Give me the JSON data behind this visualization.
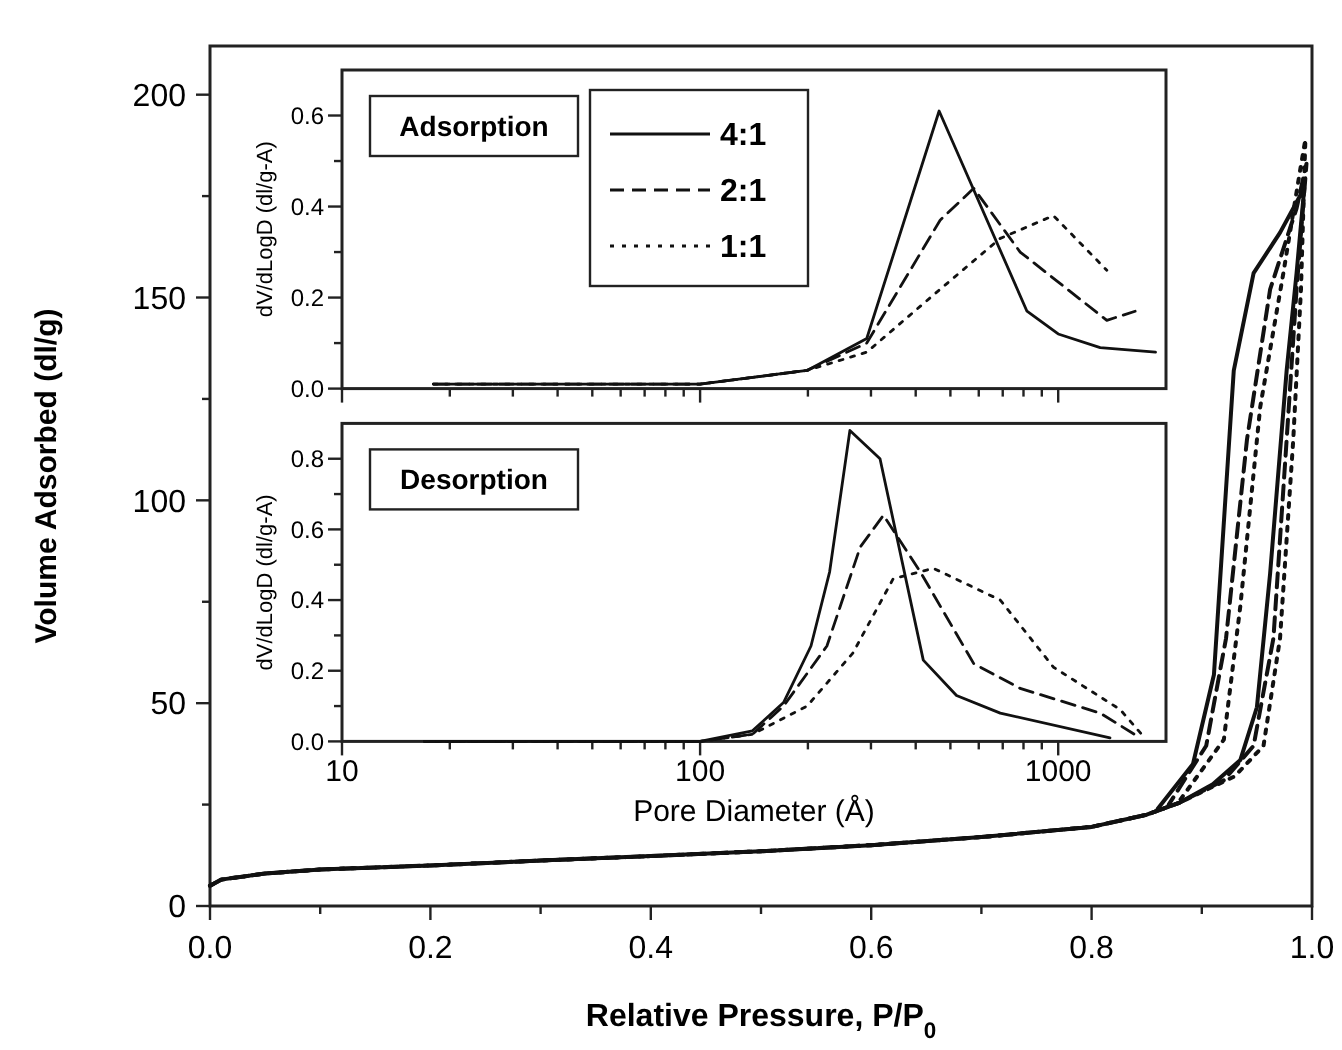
{
  "chart_data": [
    {
      "type": "line",
      "xlabel": "Relative Pressure, P/P$_{0}$",
      "ylabel": "Volume Adsorbed (dl/g)",
      "xlim": [
        0,
        1
      ],
      "ylim": [
        0,
        212
      ],
      "xticks": [
        {
          "value": 0,
          "label": "0.0"
        },
        {
          "value": 0.1,
          "label": null
        },
        {
          "value": 0.2,
          "label": "0.2"
        },
        {
          "value": 0.3,
          "label": null
        },
        {
          "value": 0.4,
          "label": "0.4"
        },
        {
          "value": 0.5,
          "label": null
        },
        {
          "value": 0.6,
          "label": "0.6"
        },
        {
          "value": 0.7,
          "label": null
        },
        {
          "value": 0.8,
          "label": "0.8"
        },
        {
          "value": 0.9,
          "label": null
        },
        {
          "value": 1,
          "label": "1.0"
        }
      ],
      "yticks": [
        0,
        {
          "value": 25,
          "label": null
        },
        50,
        {
          "value": 75,
          "label": null
        },
        100,
        {
          "value": 125,
          "label": null
        },
        150,
        {
          "value": 175,
          "label": null
        },
        200
      ],
      "series": [
        {
          "color": "#111111",
          "line_style": "solid",
          "x": [
            0,
            0.01,
            0.05,
            0.1,
            0.2,
            0.3,
            0.4,
            0.5,
            0.6,
            0.7,
            0.8,
            0.85,
            0.88,
            0.91,
            0.935,
            0.95,
            0.962,
            0.977,
            0.986,
            0.993,
            0.971,
            0.947,
            0.929,
            0.911,
            0.892,
            0.86
          ],
          "values": [
            5,
            6.5,
            8,
            9,
            10,
            11.2,
            12.3,
            13.5,
            15,
            17,
            19.5,
            22.5,
            25.5,
            30,
            36,
            49,
            82,
            132,
            156,
            177,
            166,
            156,
            132,
            57,
            35,
            24
          ]
        },
        {
          "color": "#111111",
          "line_style": "dashed",
          "x": [
            0,
            0.01,
            0.05,
            0.1,
            0.2,
            0.3,
            0.4,
            0.5,
            0.6,
            0.7,
            0.8,
            0.85,
            0.88,
            0.92,
            0.947,
            0.965,
            0.977,
            0.986,
            0.995,
            0.986,
            0.962,
            0.941,
            0.922,
            0.904,
            0.87
          ],
          "values": [
            5,
            6.5,
            8,
            9,
            10,
            11.2,
            12.3,
            13.5,
            15,
            17,
            19.5,
            22.5,
            25.5,
            31,
            39.5,
            66,
            115,
            152,
            183,
            172,
            152,
            115,
            66,
            39.5,
            25
          ]
        },
        {
          "color": "#111111",
          "line_style": "dotted",
          "x": [
            0,
            0.01,
            0.05,
            0.1,
            0.2,
            0.3,
            0.4,
            0.5,
            0.6,
            0.7,
            0.8,
            0.85,
            0.88,
            0.93,
            0.956,
            0.971,
            0.983,
            0.99,
            0.994,
            0.989,
            0.974,
            0.953,
            0.935,
            0.92,
            0.88
          ],
          "values": [
            5,
            6.5,
            8,
            9,
            10,
            11.2,
            12.3,
            13.5,
            15,
            17,
            19.5,
            22.5,
            25.5,
            32,
            39.5,
            66,
            115,
            152,
            189,
            181,
            156,
            123,
            74,
            41,
            26
          ]
        }
      ]
    },
    {
      "type": "line",
      "title": "Adsorption",
      "ylabel": "dV/dLogD (dl/g-A)",
      "log": "x",
      "xlim": [
        10,
        2000
      ],
      "ylim": [
        0,
        0.7
      ],
      "tick_labels": "y",
      "legend": "top left",
      "xticks": [
        10,
        {
          "value": 20,
          "label": null
        },
        {
          "value": 30,
          "label": null
        },
        {
          "value": 40,
          "label": null
        },
        {
          "value": 50,
          "label": null
        },
        {
          "value": 60,
          "label": null
        },
        {
          "value": 70,
          "label": null
        },
        {
          "value": 80,
          "label": null
        },
        {
          "value": 90,
          "label": null
        },
        100,
        {
          "value": 200,
          "label": null
        },
        {
          "value": 300,
          "label": null
        },
        {
          "value": 400,
          "label": null
        },
        {
          "value": 500,
          "label": null
        },
        {
          "value": 600,
          "label": null
        },
        {
          "value": 700,
          "label": null
        },
        {
          "value": 800,
          "label": null
        },
        {
          "value": 900,
          "label": null
        },
        1000
      ],
      "yticks": [
        {
          "value": 0,
          "label": "0.0"
        },
        {
          "value": 0.1,
          "label": null
        },
        {
          "value": 0.2,
          "label": "0.2"
        },
        {
          "value": 0.3,
          "label": null
        },
        {
          "value": 0.4,
          "label": "0.4"
        },
        {
          "value": 0.5,
          "label": null
        },
        {
          "value": 0.6,
          "label": "0.6"
        }
      ],
      "series": [
        {
          "name": "4:1",
          "color": "#111111",
          "line_style": "solid",
          "x": [
            18,
            100,
            199,
            292,
            465,
            818,
            1000,
            1310,
            1870
          ],
          "values": [
            0.01,
            0.01,
            0.04,
            0.11,
            0.61,
            0.17,
            0.12,
            0.09,
            0.08
          ]
        },
        {
          "name": "2:1",
          "color": "#111111",
          "line_style": "dashed",
          "x": [
            18,
            100,
            199,
            292,
            468,
            581,
            783,
            1367,
            1640
          ],
          "values": [
            0.01,
            0.01,
            0.04,
            0.1,
            0.37,
            0.44,
            0.3,
            0.15,
            0.17
          ]
        },
        {
          "name": "1:1",
          "color": "#111111",
          "line_style": "dotted",
          "x": [
            18,
            100,
            199,
            292,
            455,
            689,
            970,
            1367
          ],
          "values": [
            0.01,
            0.01,
            0.04,
            0.08,
            0.21,
            0.33,
            0.38,
            0.26
          ]
        }
      ]
    },
    {
      "type": "line",
      "title": "Desorption",
      "xlabel": "Pore Diameter (Å)",
      "ylabel": "dV/dLogD (dl/g-A)",
      "log": "x",
      "xlim": [
        10,
        2000
      ],
      "ylim": [
        0,
        0.9
      ],
      "xticks": [
        10,
        {
          "value": 20,
          "label": null
        },
        {
          "value": 30,
          "label": null
        },
        {
          "value": 40,
          "label": null
        },
        {
          "value": 50,
          "label": null
        },
        {
          "value": 60,
          "label": null
        },
        {
          "value": 70,
          "label": null
        },
        {
          "value": 80,
          "label": null
        },
        {
          "value": 90,
          "label": null
        },
        100,
        {
          "value": 200,
          "label": null
        },
        {
          "value": 300,
          "label": null
        },
        {
          "value": 400,
          "label": null
        },
        {
          "value": 500,
          "label": null
        },
        {
          "value": 600,
          "label": null
        },
        {
          "value": 700,
          "label": null
        },
        {
          "value": 800,
          "label": null
        },
        {
          "value": 900,
          "label": null
        },
        1000
      ],
      "yticks": [
        {
          "value": 0,
          "label": "0.0"
        },
        {
          "value": 0.1,
          "label": null
        },
        {
          "value": 0.2,
          "label": "0.2"
        },
        {
          "value": 0.3,
          "label": null
        },
        {
          "value": 0.4,
          "label": "0.4"
        },
        {
          "value": 0.5,
          "label": null
        },
        {
          "value": 0.6,
          "label": "0.6"
        },
        {
          "value": 0.7,
          "label": null
        },
        {
          "value": 0.8,
          "label": "0.8"
        }
      ],
      "series": [
        {
          "color": "#111111",
          "line_style": "solid",
          "x": [
            17,
            100,
            140,
            171,
            204,
            230,
            262,
            318,
            420,
            520,
            689,
            1395
          ],
          "values": [
            0,
            0,
            0.03,
            0.11,
            0.27,
            0.48,
            0.88,
            0.8,
            0.23,
            0.13,
            0.08,
            0.01
          ]
        },
        {
          "color": "#111111",
          "line_style": "dashed",
          "x": [
            17,
            100,
            140,
            171,
            226,
            280,
            325,
            412,
            581,
            783,
            1310,
            1695
          ],
          "values": [
            0,
            0,
            0.02,
            0.1,
            0.27,
            0.55,
            0.64,
            0.48,
            0.22,
            0.15,
            0.08,
            0.01
          ]
        },
        {
          "color": "#111111",
          "line_style": "dotted",
          "x": [
            17,
            100,
            140,
            199,
            267,
            346,
            448,
            689,
            970,
            1490,
            1710
          ],
          "values": [
            0,
            0,
            0.02,
            0.1,
            0.25,
            0.46,
            0.49,
            0.4,
            0.21,
            0.09,
            0.02
          ]
        }
      ]
    }
  ]
}
